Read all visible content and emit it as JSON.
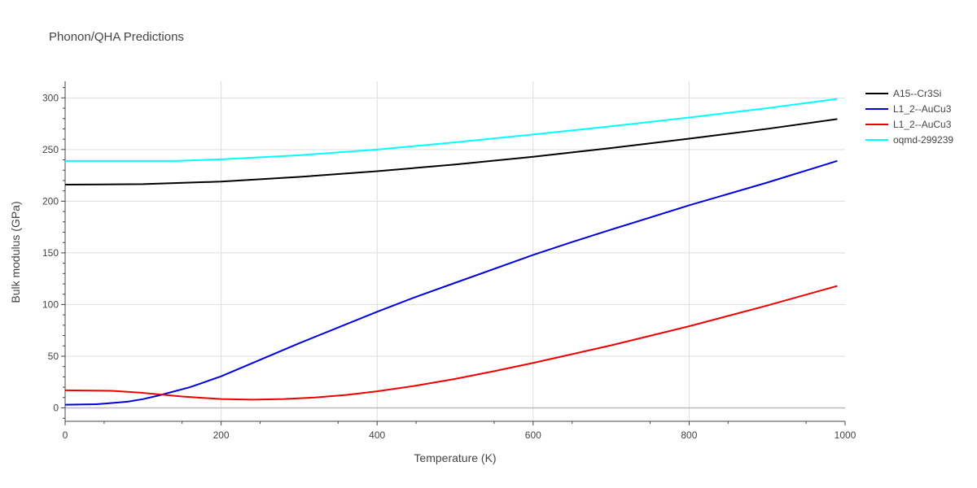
{
  "chart_data": {
    "type": "line",
    "title": "Phonon/QHA Predictions",
    "xlabel": "Temperature (K)",
    "ylabel": "Bulk modulus (GPa)",
    "xlim": [
      0,
      1000
    ],
    "ylim": [
      -13,
      316
    ],
    "x_ticks": [
      0,
      200,
      400,
      600,
      800,
      1000
    ],
    "y_ticks": [
      0,
      50,
      100,
      150,
      200,
      250,
      300
    ],
    "grid": true,
    "legend_position": "top-right",
    "series": [
      {
        "name": "A15--Cr3Si",
        "color": "#000000",
        "x": [
          0,
          100,
          200,
          300,
          400,
          500,
          600,
          700,
          800,
          900,
          990
        ],
        "y": [
          216,
          216.5,
          219,
          223.5,
          229,
          235.5,
          243,
          251.5,
          260.5,
          270,
          279.5
        ]
      },
      {
        "name": "L1_2--AuCu3",
        "color": "#0000dd",
        "x": [
          0,
          40,
          80,
          100,
          120,
          160,
          200,
          300,
          400,
          450,
          500,
          600,
          650,
          700,
          800,
          900,
          990
        ],
        "y": [
          3,
          3.5,
          6,
          8.5,
          12,
          20,
          30.5,
          62.5,
          93,
          107.5,
          121,
          148,
          160.5,
          172.5,
          196,
          218,
          239
        ]
      },
      {
        "name": "L1_2--AuCu3",
        "color": "#ee0000",
        "x": [
          0,
          60,
          100,
          150,
          200,
          240,
          280,
          320,
          360,
          400,
          450,
          500,
          550,
          600,
          700,
          800,
          900,
          990
        ],
        "y": [
          17,
          16.5,
          14.5,
          11,
          8.5,
          8,
          8.5,
          10,
          12.5,
          16,
          21.5,
          28,
          35.5,
          43.5,
          60.5,
          79,
          99,
          118
        ]
      },
      {
        "name": "oqmd-299239",
        "color": "#00ffff",
        "x": [
          0,
          140,
          200,
          300,
          400,
          500,
          600,
          700,
          800,
          900,
          990
        ],
        "y": [
          239,
          239,
          240.5,
          244.5,
          250,
          257,
          264.5,
          272.5,
          281,
          290,
          299
        ]
      }
    ]
  }
}
